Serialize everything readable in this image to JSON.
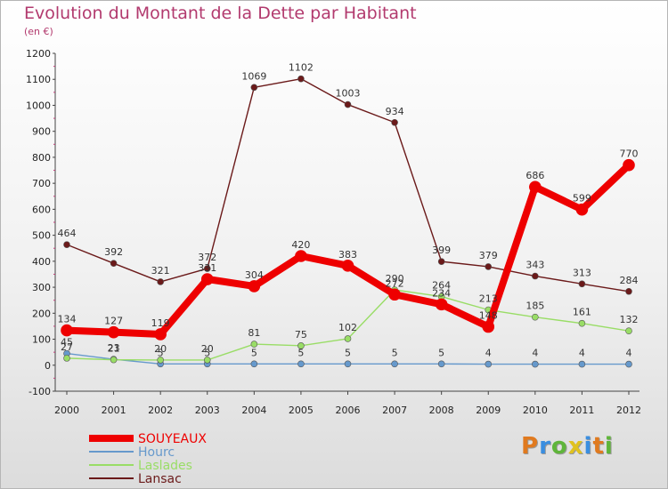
{
  "header": {
    "title": "Evolution du Montant de la Dette par Habitant",
    "subtitle": "(en €)"
  },
  "logo": {
    "text": "Proxiti",
    "colors": [
      "#e07a1f",
      "#3a8ee0",
      "#5fb53a",
      "#e0c21f",
      "#3a8ee0",
      "#e07a1f",
      "#5fb53a"
    ]
  },
  "chart_data": {
    "type": "line",
    "x": [
      "2000",
      "2001",
      "2002",
      "2003",
      "2004",
      "2005",
      "2006",
      "2007",
      "2008",
      "2009",
      "2010",
      "2011",
      "2012"
    ],
    "ylim": [
      -100,
      1200
    ],
    "yticks": [
      "-100",
      "0",
      "100",
      "200",
      "300",
      "400",
      "500",
      "600",
      "700",
      "800",
      "900",
      "1000",
      "1100",
      "1200"
    ],
    "grid": false,
    "legend_position": "bottom-left",
    "series": [
      {
        "name": "SOUYEAUX",
        "color": "#ee0000",
        "values": [
          134,
          127,
          119,
          331,
          304,
          420,
          383,
          272,
          234,
          148,
          686,
          599,
          770
        ],
        "labels": [
          "134",
          "127",
          "119",
          "331",
          "304",
          "420",
          "383",
          "272",
          "234",
          "148",
          "686",
          "599",
          "770"
        ]
      },
      {
        "name": "Hourc",
        "color": "#6699cc",
        "values": [
          45,
          23,
          5,
          5,
          5,
          5,
          5,
          5,
          5,
          4,
          4,
          4,
          4
        ],
        "labels": [
          "45",
          "23",
          "5",
          "5",
          "5",
          "5",
          "5",
          "5",
          "5",
          "4",
          "4",
          "4",
          "4"
        ]
      },
      {
        "name": "Laslades",
        "color": "#99dd66",
        "values": [
          27,
          21,
          20,
          20,
          81,
          75,
          102,
          290,
          264,
          213,
          185,
          161,
          132
        ],
        "labels": [
          "27",
          "21",
          "20",
          "20",
          "81",
          "75",
          "102",
          "290",
          "264",
          "213",
          "185",
          "161",
          "132"
        ]
      },
      {
        "name": "Lansac",
        "color": "#6b1a1a",
        "values": [
          464,
          392,
          321,
          372,
          1069,
          1102,
          1003,
          934,
          399,
          379,
          343,
          313,
          284
        ],
        "labels": [
          "464",
          "392",
          "321",
          "372",
          "1069",
          "1102",
          "1003",
          "934",
          "399",
          "379",
          "343",
          "313",
          "284"
        ]
      }
    ]
  }
}
